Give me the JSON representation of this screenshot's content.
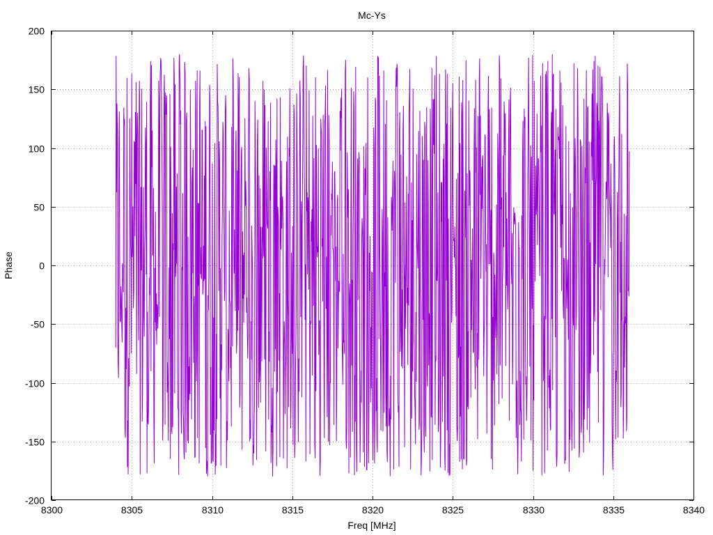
{
  "chart_data": {
    "type": "line",
    "title": "Mc-Ys",
    "xlabel": "Freq [MHz]",
    "ylabel": "Phase",
    "xlim": [
      8300,
      8340
    ],
    "ylim": [
      -200,
      200
    ],
    "xticks": [
      8300,
      8305,
      8310,
      8315,
      8320,
      8325,
      8330,
      8335,
      8340
    ],
    "yticks": [
      -200,
      -150,
      -100,
      -50,
      0,
      50,
      100,
      150,
      200
    ],
    "grid": true,
    "legend": "none",
    "series": [
      {
        "color": "#9400d3",
        "x_start": 8304.0,
        "x_end": 8336.0,
        "x_step": 0.025,
        "y_range": [
          -180,
          180
        ],
        "description_of_values": "dense noise-like phase values spanning roughly -180 to 180 degrees across the band"
      }
    ]
  }
}
